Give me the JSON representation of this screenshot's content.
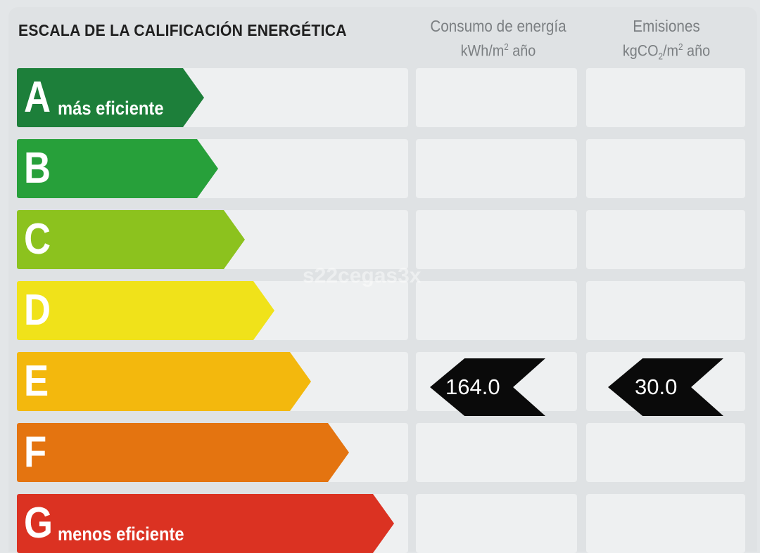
{
  "title": "ESCALA DE LA CALIFICACIÓN ENERGÉTICA",
  "columns": {
    "energy": {
      "line1": "Consumo de energía",
      "line2_pre": "kWh/m",
      "line2_sup": "2",
      "line2_post": " año"
    },
    "emissions": {
      "line1": "Emisiones",
      "line2_pre": "kgCO",
      "line2_sub": "2",
      "line2_mid": "/m",
      "line2_sup": "2",
      "line2_post": " año"
    }
  },
  "ratings": [
    {
      "letter": "A",
      "label": "más eficiente",
      "color": "#1d7f3a"
    },
    {
      "letter": "B",
      "label": "",
      "color": "#27a03a"
    },
    {
      "letter": "C",
      "label": "",
      "color": "#8cc21e"
    },
    {
      "letter": "D",
      "label": "",
      "color": "#f0e21a"
    },
    {
      "letter": "E",
      "label": "",
      "color": "#f3b80d"
    },
    {
      "letter": "F",
      "label": "",
      "color": "#e47410"
    },
    {
      "letter": "G",
      "label": "menos eficiente",
      "color": "#db3222"
    }
  ],
  "current": {
    "rating": "E",
    "energy_value": "164.0",
    "emissions_value": "30.0"
  },
  "watermark": "s22cegas3x"
}
